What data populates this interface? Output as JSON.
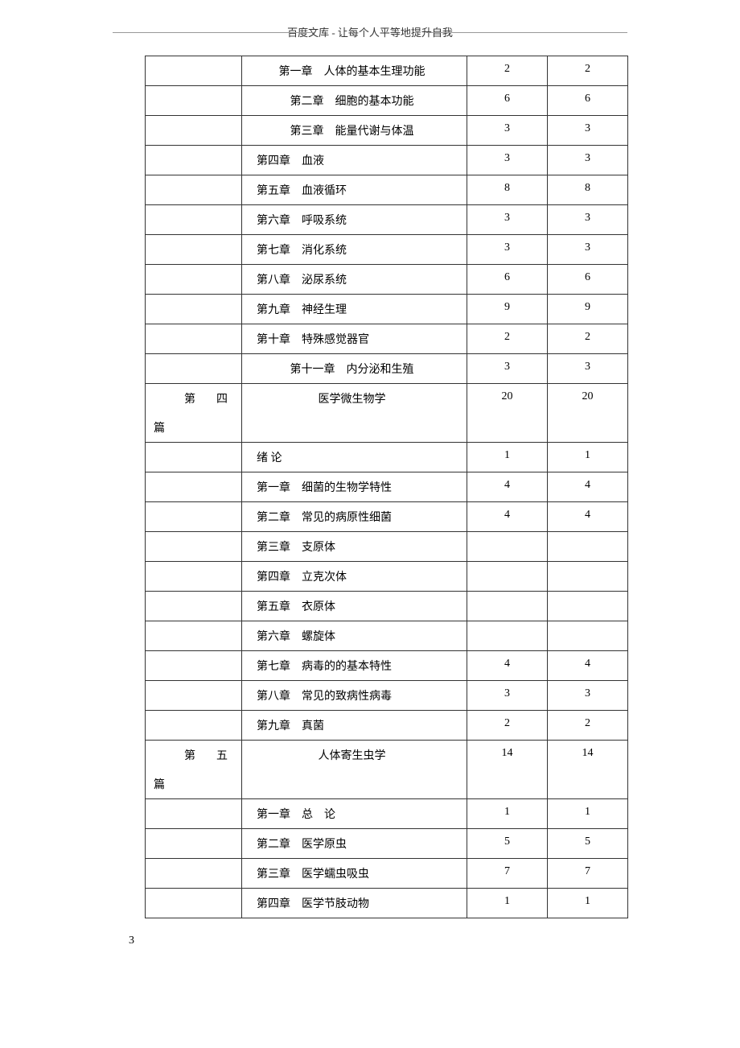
{
  "header": {
    "text": "百度文库 - 让每个人平等地提升自我"
  },
  "page_number": "3",
  "sections": [
    {
      "section_label": "",
      "section_pian": "",
      "rows": [
        {
          "chapter": "第一章　人体的基本生理功能",
          "col3": "2",
          "col4": "2",
          "center": true
        },
        {
          "chapter": "第二章　细胞的基本功能",
          "col3": "6",
          "col4": "6",
          "center": true
        },
        {
          "chapter": "第三章　能量代谢与体温",
          "col3": "3",
          "col4": "3",
          "center": true
        },
        {
          "chapter": "第四章　血液",
          "col3": "3",
          "col4": "3",
          "center": false
        },
        {
          "chapter": "第五章　血液循环",
          "col3": "8",
          "col4": "8",
          "center": false
        },
        {
          "chapter": "第六章　呼吸系统",
          "col3": "3",
          "col4": "3",
          "center": false
        },
        {
          "chapter": "第七章　消化系统",
          "col3": "3",
          "col4": "3",
          "center": false
        },
        {
          "chapter": "第八章　泌尿系统",
          "col3": "6",
          "col4": "6",
          "center": false
        },
        {
          "chapter": "第九章　神经生理",
          "col3": "9",
          "col4": "9",
          "center": false
        },
        {
          "chapter": "第十章　特殊感觉器官",
          "col3": "2",
          "col4": "2",
          "center": false
        },
        {
          "chapter": "第十一章　内分泌和生殖",
          "col3": "3",
          "col4": "3",
          "center": true
        }
      ]
    },
    {
      "section_label": "第　四",
      "section_pian": "篇",
      "section_title": "医学微生物学",
      "section_col3": "20",
      "section_col4": "20",
      "rows": [
        {
          "chapter": "绪 论",
          "col3": "1",
          "col4": "1",
          "center": false
        },
        {
          "chapter": "第一章　细菌的生物学特性",
          "col3": "4",
          "col4": "4",
          "center": false
        },
        {
          "chapter": "第二章　常见的病原性细菌",
          "col3": "4",
          "col4": "4",
          "center": false
        },
        {
          "chapter": "第三章　支原体",
          "col3": "",
          "col4": "",
          "center": false
        },
        {
          "chapter": "第四章　立克次体",
          "col3": "",
          "col4": "",
          "center": false
        },
        {
          "chapter": "第五章　衣原体",
          "col3": "",
          "col4": "",
          "center": false
        },
        {
          "chapter": "第六章　螺旋体",
          "col3": "",
          "col4": "",
          "center": false
        },
        {
          "chapter": "第七章　病毒的的基本特性",
          "col3": "4",
          "col4": "4",
          "center": false
        },
        {
          "chapter": "第八章　常见的致病性病毒",
          "col3": "3",
          "col4": "3",
          "center": false
        },
        {
          "chapter": "第九章　真菌",
          "col3": "2",
          "col4": "2",
          "center": false
        }
      ]
    },
    {
      "section_label": "第　五",
      "section_pian": "篇",
      "section_title": "人体寄生虫学",
      "section_col3": "14",
      "section_col4": "14",
      "rows": [
        {
          "chapter": "第一章　总　论",
          "col3": "1",
          "col4": "1",
          "center": false
        },
        {
          "chapter": "第二章　医学原虫",
          "col3": "5",
          "col4": "5",
          "center": false
        },
        {
          "chapter": "第三章　医学蠕虫吸虫",
          "col3": "7",
          "col4": "7",
          "center": false
        },
        {
          "chapter": "第四章　医学节肢动物",
          "col3": "1",
          "col4": "1",
          "center": false
        }
      ]
    }
  ]
}
